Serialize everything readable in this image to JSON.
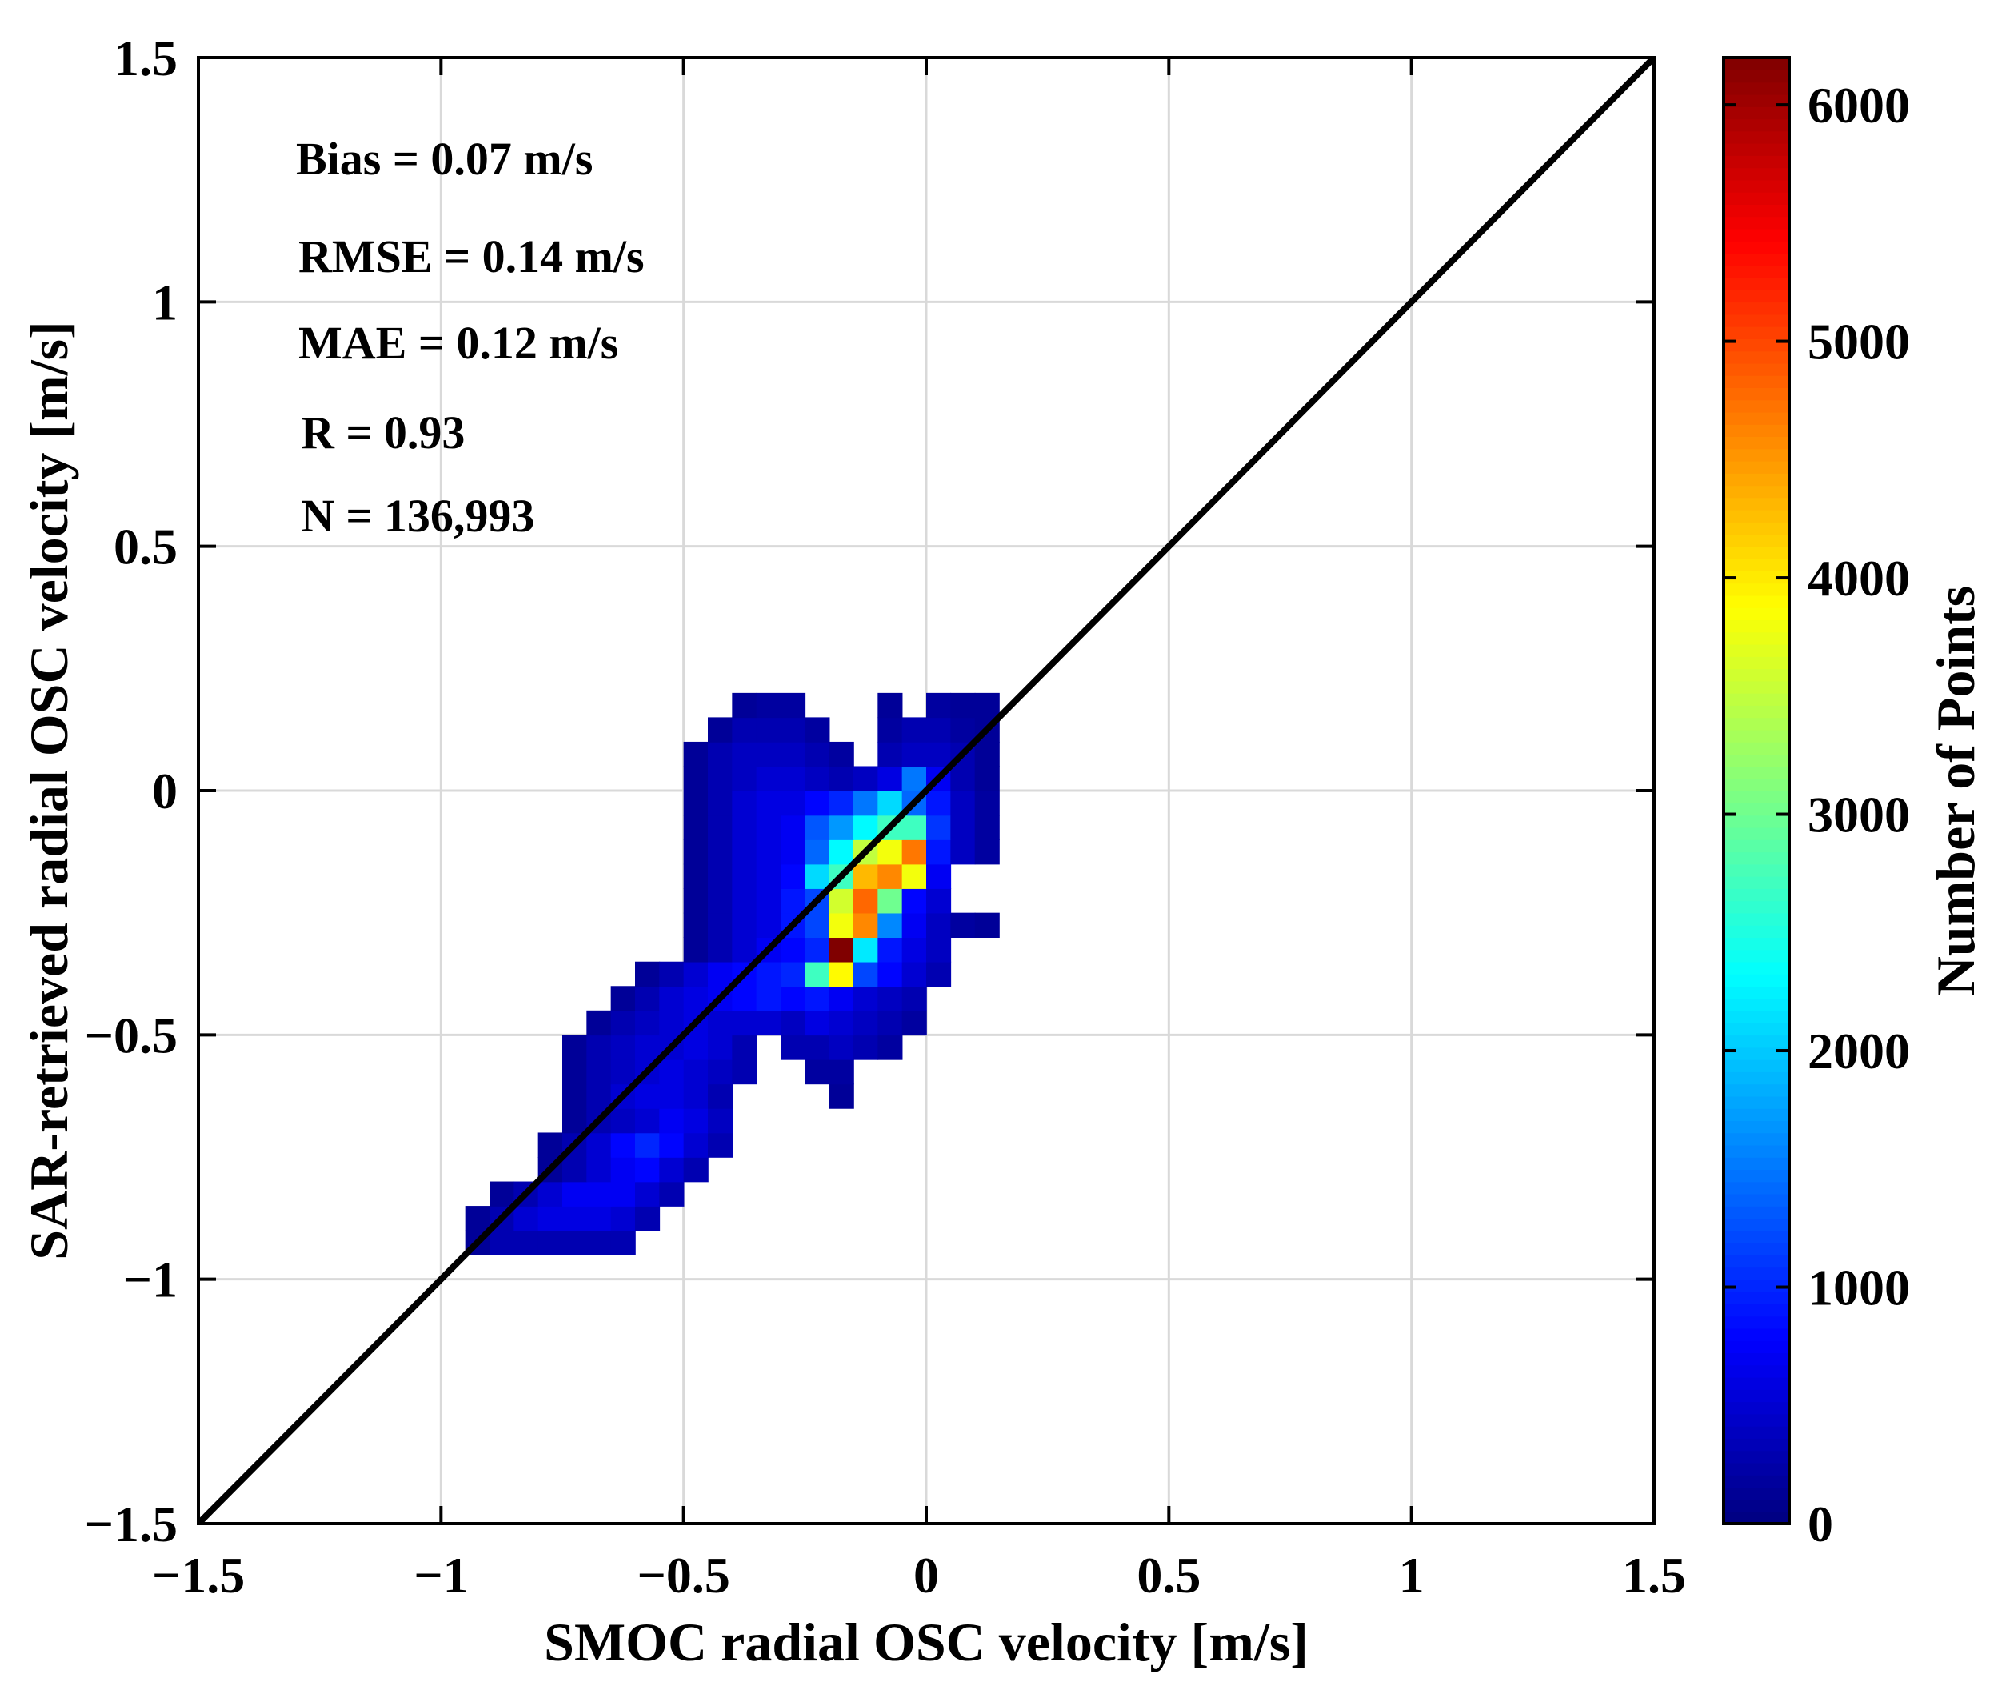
{
  "chart_data": {
    "type": "heatmap",
    "title": "",
    "xlabel": "SMOC radial OSC velocity [m/s]",
    "ylabel": "SAR-retrieved radial OSC velocity [m/s]",
    "colorbar_label": "Number of Points",
    "xlim": [
      -1.5,
      1.5
    ],
    "ylim": [
      -1.5,
      1.5
    ],
    "x_ticks": [
      -1.5,
      -1,
      -0.5,
      0,
      0.5,
      1,
      1.5
    ],
    "y_ticks": [
      -1.5,
      -1,
      -0.5,
      0,
      0.5,
      1,
      1.5
    ],
    "x_tick_labels": [
      "−1.5",
      "−1",
      "−0.5",
      "0",
      "0.5",
      "1",
      "1.5"
    ],
    "y_tick_labels": [
      "−1.5",
      "−1",
      "−0.5",
      "0",
      "0.5",
      "1",
      "1.5"
    ],
    "colorbar_range": [
      0,
      6200
    ],
    "colorbar_ticks": [
      0,
      1000,
      2000,
      3000,
      4000,
      5000,
      6000
    ],
    "colorbar_tick_labels": [
      "0",
      "1000",
      "2000",
      "3000",
      "4000",
      "5000",
      "6000"
    ],
    "grid": true,
    "reference_line": {
      "label": "1:1 line",
      "x": [
        -1.5,
        1.5
      ],
      "y": [
        -1.5,
        1.5
      ],
      "color": "#000000"
    },
    "statistics": [
      {
        "key": "bias",
        "text": "Bias = 0.07 m/s"
      },
      {
        "key": "rmse",
        "text": "RMSE = 0.14 m/s"
      },
      {
        "key": "mae",
        "text": "MAE = 0.12 m/s"
      },
      {
        "key": "r",
        "text": "R = 0.93"
      },
      {
        "key": "n",
        "text": "N = 136,993"
      }
    ],
    "bin_size": 0.05,
    "bins_note": "each entry: [x_lower, y_lower, count]",
    "bins": [
      [
        -0.95,
        -0.95,
        150
      ],
      [
        -0.9,
        -0.95,
        300
      ],
      [
        -0.85,
        -0.95,
        300
      ],
      [
        -0.8,
        -0.95,
        300
      ],
      [
        -0.75,
        -0.95,
        300
      ],
      [
        -0.7,
        -0.95,
        300
      ],
      [
        -0.65,
        -0.95,
        300
      ],
      [
        -0.95,
        -0.9,
        150
      ],
      [
        -0.9,
        -0.9,
        300
      ],
      [
        -0.85,
        -0.9,
        500
      ],
      [
        -0.8,
        -0.9,
        600
      ],
      [
        -0.75,
        -0.9,
        600
      ],
      [
        -0.7,
        -0.9,
        600
      ],
      [
        -0.65,
        -0.9,
        500
      ],
      [
        -0.6,
        -0.9,
        300
      ],
      [
        -0.9,
        -0.85,
        150
      ],
      [
        -0.85,
        -0.85,
        300
      ],
      [
        -0.8,
        -0.85,
        500
      ],
      [
        -0.75,
        -0.85,
        700
      ],
      [
        -0.7,
        -0.85,
        700
      ],
      [
        -0.65,
        -0.85,
        700
      ],
      [
        -0.6,
        -0.85,
        500
      ],
      [
        -0.55,
        -0.85,
        300
      ],
      [
        -0.8,
        -0.8,
        150
      ],
      [
        -0.75,
        -0.8,
        300
      ],
      [
        -0.7,
        -0.8,
        500
      ],
      [
        -0.65,
        -0.8,
        700
      ],
      [
        -0.6,
        -0.8,
        800
      ],
      [
        -0.55,
        -0.8,
        500
      ],
      [
        -0.5,
        -0.8,
        300
      ],
      [
        -0.8,
        -0.75,
        150
      ],
      [
        -0.75,
        -0.75,
        300
      ],
      [
        -0.7,
        -0.75,
        500
      ],
      [
        -0.65,
        -0.75,
        800
      ],
      [
        -0.6,
        -0.75,
        1000
      ],
      [
        -0.55,
        -0.75,
        800
      ],
      [
        -0.5,
        -0.75,
        500
      ],
      [
        -0.45,
        -0.75,
        300
      ],
      [
        -0.75,
        -0.7,
        150
      ],
      [
        -0.7,
        -0.7,
        300
      ],
      [
        -0.65,
        -0.7,
        400
      ],
      [
        -0.6,
        -0.7,
        500
      ],
      [
        -0.55,
        -0.7,
        700
      ],
      [
        -0.5,
        -0.7,
        600
      ],
      [
        -0.45,
        -0.7,
        400
      ],
      [
        -0.75,
        -0.65,
        150
      ],
      [
        -0.7,
        -0.65,
        300
      ],
      [
        -0.65,
        -0.65,
        500
      ],
      [
        -0.6,
        -0.65,
        600
      ],
      [
        -0.55,
        -0.65,
        600
      ],
      [
        -0.5,
        -0.65,
        500
      ],
      [
        -0.45,
        -0.65,
        300
      ],
      [
        -0.2,
        -0.65,
        150
      ],
      [
        -0.75,
        -0.6,
        150
      ],
      [
        -0.7,
        -0.6,
        300
      ],
      [
        -0.65,
        -0.6,
        400
      ],
      [
        -0.6,
        -0.6,
        500
      ],
      [
        -0.55,
        -0.6,
        600
      ],
      [
        -0.5,
        -0.6,
        500
      ],
      [
        -0.45,
        -0.6,
        400
      ],
      [
        -0.4,
        -0.6,
        300
      ],
      [
        -0.25,
        -0.6,
        200
      ],
      [
        -0.2,
        -0.6,
        200
      ],
      [
        -0.75,
        -0.55,
        150
      ],
      [
        -0.7,
        -0.55,
        300
      ],
      [
        -0.65,
        -0.55,
        400
      ],
      [
        -0.6,
        -0.55,
        500
      ],
      [
        -0.55,
        -0.55,
        500
      ],
      [
        -0.5,
        -0.55,
        600
      ],
      [
        -0.45,
        -0.55,
        500
      ],
      [
        -0.4,
        -0.55,
        300
      ],
      [
        -0.3,
        -0.55,
        300
      ],
      [
        -0.25,
        -0.55,
        300
      ],
      [
        -0.2,
        -0.55,
        400
      ],
      [
        -0.15,
        -0.55,
        300
      ],
      [
        -0.1,
        -0.55,
        200
      ],
      [
        -0.7,
        -0.5,
        150
      ],
      [
        -0.65,
        -0.5,
        300
      ],
      [
        -0.6,
        -0.5,
        400
      ],
      [
        -0.55,
        -0.5,
        500
      ],
      [
        -0.5,
        -0.5,
        600
      ],
      [
        -0.45,
        -0.5,
        500
      ],
      [
        -0.4,
        -0.5,
        500
      ],
      [
        -0.35,
        -0.5,
        500
      ],
      [
        -0.3,
        -0.5,
        400
      ],
      [
        -0.25,
        -0.5,
        600
      ],
      [
        -0.2,
        -0.5,
        500
      ],
      [
        -0.15,
        -0.5,
        400
      ],
      [
        -0.1,
        -0.5,
        300
      ],
      [
        -0.05,
        -0.5,
        200
      ],
      [
        -0.65,
        -0.45,
        150
      ],
      [
        -0.6,
        -0.45,
        300
      ],
      [
        -0.55,
        -0.45,
        500
      ],
      [
        -0.5,
        -0.45,
        600
      ],
      [
        -0.45,
        -0.45,
        700
      ],
      [
        -0.4,
        -0.45,
        800
      ],
      [
        -0.35,
        -0.45,
        900
      ],
      [
        -0.3,
        -0.45,
        800
      ],
      [
        -0.25,
        -0.45,
        900
      ],
      [
        -0.2,
        -0.45,
        700
      ],
      [
        -0.15,
        -0.45,
        500
      ],
      [
        -0.1,
        -0.45,
        400
      ],
      [
        -0.05,
        -0.45,
        300
      ],
      [
        -0.6,
        -0.4,
        150
      ],
      [
        -0.55,
        -0.4,
        300
      ],
      [
        -0.5,
        -0.4,
        500
      ],
      [
        -0.45,
        -0.4,
        700
      ],
      [
        -0.4,
        -0.4,
        800
      ],
      [
        -0.35,
        -0.4,
        900
      ],
      [
        -0.3,
        -0.4,
        1000
      ],
      [
        -0.25,
        -0.4,
        2700
      ],
      [
        -0.2,
        -0.4,
        3900
      ],
      [
        -0.15,
        -0.4,
        1200
      ],
      [
        -0.1,
        -0.4,
        800
      ],
      [
        -0.05,
        -0.4,
        500
      ],
      [
        0.0,
        -0.4,
        300
      ],
      [
        -0.5,
        -0.35,
        150
      ],
      [
        -0.45,
        -0.35,
        300
      ],
      [
        -0.4,
        -0.35,
        500
      ],
      [
        -0.35,
        -0.35,
        700
      ],
      [
        -0.3,
        -0.35,
        800
      ],
      [
        -0.25,
        -0.35,
        1000
      ],
      [
        -0.2,
        -0.35,
        6200
      ],
      [
        -0.15,
        -0.35,
        2200
      ],
      [
        -0.1,
        -0.35,
        900
      ],
      [
        -0.05,
        -0.35,
        600
      ],
      [
        0.0,
        -0.35,
        400
      ],
      [
        -0.5,
        -0.3,
        150
      ],
      [
        -0.45,
        -0.3,
        300
      ],
      [
        -0.4,
        -0.3,
        500
      ],
      [
        -0.35,
        -0.3,
        600
      ],
      [
        -0.3,
        -0.3,
        900
      ],
      [
        -0.25,
        -0.3,
        1200
      ],
      [
        -0.2,
        -0.3,
        3800
      ],
      [
        -0.15,
        -0.3,
        4600
      ],
      [
        -0.1,
        -0.3,
        1600
      ],
      [
        -0.05,
        -0.3,
        700
      ],
      [
        0.0,
        -0.3,
        400
      ],
      [
        0.05,
        -0.3,
        200
      ],
      [
        0.1,
        -0.3,
        150
      ],
      [
        -0.5,
        -0.25,
        150
      ],
      [
        -0.45,
        -0.25,
        300
      ],
      [
        -0.4,
        -0.25,
        500
      ],
      [
        -0.35,
        -0.25,
        600
      ],
      [
        -0.3,
        -0.25,
        900
      ],
      [
        -0.25,
        -0.25,
        1200
      ],
      [
        -0.2,
        -0.25,
        3600
      ],
      [
        -0.15,
        -0.25,
        4800
      ],
      [
        -0.1,
        -0.25,
        3000
      ],
      [
        -0.05,
        -0.25,
        800
      ],
      [
        0.0,
        -0.25,
        500
      ],
      [
        -0.5,
        -0.2,
        150
      ],
      [
        -0.45,
        -0.2,
        300
      ],
      [
        -0.4,
        -0.2,
        500
      ],
      [
        -0.35,
        -0.2,
        600
      ],
      [
        -0.3,
        -0.2,
        800
      ],
      [
        -0.25,
        -0.2,
        2100
      ],
      [
        -0.2,
        -0.2,
        2700
      ],
      [
        -0.15,
        -0.2,
        4300
      ],
      [
        -0.1,
        -0.2,
        4600
      ],
      [
        -0.05,
        -0.2,
        3800
      ],
      [
        0.0,
        -0.2,
        700
      ],
      [
        -0.5,
        -0.15,
        150
      ],
      [
        -0.45,
        -0.15,
        300
      ],
      [
        -0.4,
        -0.15,
        500
      ],
      [
        -0.35,
        -0.15,
        600
      ],
      [
        -0.3,
        -0.15,
        700
      ],
      [
        -0.25,
        -0.15,
        1400
      ],
      [
        -0.2,
        -0.15,
        2300
      ],
      [
        -0.15,
        -0.15,
        3500
      ],
      [
        -0.1,
        -0.15,
        3800
      ],
      [
        -0.05,
        -0.15,
        4700
      ],
      [
        0.0,
        -0.15,
        900
      ],
      [
        0.05,
        -0.15,
        400
      ],
      [
        0.1,
        -0.15,
        200
      ],
      [
        -0.5,
        -0.1,
        150
      ],
      [
        -0.45,
        -0.1,
        300
      ],
      [
        -0.4,
        -0.1,
        500
      ],
      [
        -0.35,
        -0.1,
        600
      ],
      [
        -0.3,
        -0.1,
        700
      ],
      [
        -0.25,
        -0.1,
        1300
      ],
      [
        -0.2,
        -0.1,
        1700
      ],
      [
        -0.15,
        -0.1,
        2300
      ],
      [
        -0.1,
        -0.1,
        2700
      ],
      [
        -0.05,
        -0.1,
        2700
      ],
      [
        0.0,
        -0.1,
        1100
      ],
      [
        0.05,
        -0.1,
        400
      ],
      [
        0.1,
        -0.1,
        200
      ],
      [
        -0.5,
        -0.05,
        150
      ],
      [
        -0.45,
        -0.05,
        300
      ],
      [
        -0.4,
        -0.05,
        500
      ],
      [
        -0.35,
        -0.05,
        600
      ],
      [
        -0.3,
        -0.05,
        600
      ],
      [
        -0.25,
        -0.05,
        800
      ],
      [
        -0.2,
        -0.05,
        1000
      ],
      [
        -0.15,
        -0.05,
        1500
      ],
      [
        -0.1,
        -0.05,
        2100
      ],
      [
        -0.05,
        -0.05,
        1400
      ],
      [
        0.0,
        -0.05,
        900
      ],
      [
        0.05,
        -0.05,
        400
      ],
      [
        0.1,
        -0.05,
        200
      ],
      [
        -0.5,
        0.0,
        150
      ],
      [
        -0.45,
        0.0,
        300
      ],
      [
        -0.4,
        0.0,
        400
      ],
      [
        -0.35,
        0.0,
        500
      ],
      [
        -0.3,
        0.0,
        500
      ],
      [
        -0.25,
        0.0,
        400
      ],
      [
        -0.2,
        0.0,
        300
      ],
      [
        -0.15,
        0.0,
        400
      ],
      [
        -0.1,
        0.0,
        600
      ],
      [
        -0.05,
        0.0,
        1500
      ],
      [
        0.0,
        0.0,
        700
      ],
      [
        0.05,
        0.0,
        300
      ],
      [
        0.1,
        0.0,
        150
      ],
      [
        -0.5,
        0.05,
        150
      ],
      [
        -0.45,
        0.05,
        300
      ],
      [
        -0.4,
        0.05,
        400
      ],
      [
        -0.35,
        0.05,
        400
      ],
      [
        -0.3,
        0.05,
        400
      ],
      [
        -0.25,
        0.05,
        300
      ],
      [
        -0.2,
        0.05,
        200
      ],
      [
        -0.1,
        0.05,
        300
      ],
      [
        -0.05,
        0.05,
        400
      ],
      [
        0.0,
        0.05,
        400
      ],
      [
        0.05,
        0.05,
        300
      ],
      [
        0.1,
        0.05,
        150
      ],
      [
        -0.45,
        0.1,
        150
      ],
      [
        -0.4,
        0.1,
        300
      ],
      [
        -0.35,
        0.1,
        300
      ],
      [
        -0.3,
        0.1,
        300
      ],
      [
        -0.25,
        0.1,
        200
      ],
      [
        -0.1,
        0.1,
        200
      ],
      [
        -0.05,
        0.1,
        300
      ],
      [
        0.0,
        0.1,
        300
      ],
      [
        0.05,
        0.1,
        200
      ],
      [
        0.1,
        0.1,
        150
      ],
      [
        -0.4,
        0.15,
        150
      ],
      [
        -0.35,
        0.15,
        200
      ],
      [
        -0.3,
        0.15,
        200
      ],
      [
        -0.1,
        0.15,
        150
      ],
      [
        0.0,
        0.15,
        200
      ],
      [
        0.05,
        0.15,
        150
      ],
      [
        0.1,
        0.15,
        150
      ]
    ]
  }
}
